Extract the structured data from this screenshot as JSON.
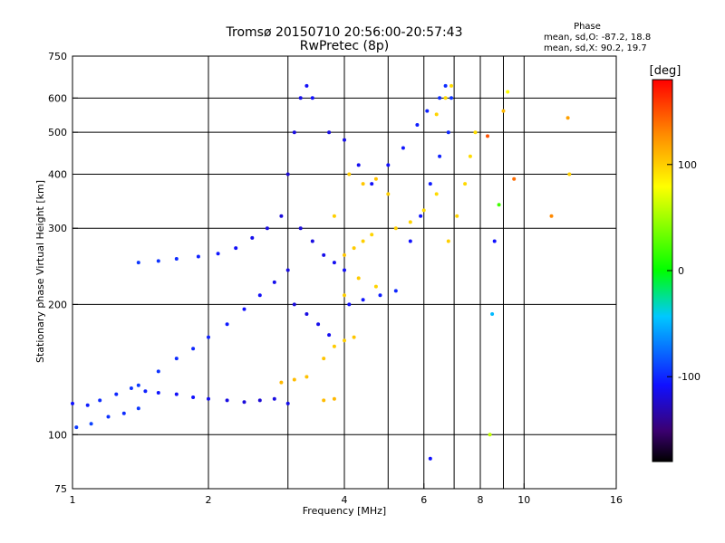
{
  "chart_data": {
    "type": "scatter",
    "title": "Tromsø 20150710 20:56:00-20:57:43",
    "subtitle": "RwPretec (8p)",
    "xlabel": "Frequency [MHz]",
    "ylabel": "Stationary phase Virtual Height [km]",
    "x_scale": "log",
    "y_scale": "log",
    "xlim": [
      1,
      16
    ],
    "ylim": [
      75,
      750
    ],
    "x_ticks": [
      1,
      2,
      4,
      6,
      8,
      10,
      16
    ],
    "x_tick_labels": [
      "1",
      "2",
      "4",
      "6",
      "8",
      "10",
      "16"
    ],
    "y_ticks": [
      75,
      100,
      200,
      300,
      400,
      500,
      600,
      750
    ],
    "y_tick_labels": [
      "75",
      "100",
      "200",
      "300",
      "400",
      "500",
      "600",
      "750"
    ],
    "x_gridlines": [
      2,
      3,
      4,
      5,
      6,
      7,
      8,
      9,
      10
    ],
    "y_gridlines": [
      100,
      200,
      300,
      400,
      500,
      600
    ],
    "grid": true,
    "phase_info": {
      "title": "Phase",
      "line_o": "mean, sd,O: -87.2, 18.8",
      "line_x": "mean, sd,X:  90.2, 19.7"
    },
    "colorbar": {
      "label": "[deg]",
      "range": [
        -180,
        180
      ],
      "ticks": [
        100,
        0,
        -100
      ],
      "tick_labels": [
        "100",
        "0",
        "-100"
      ]
    },
    "series": [
      {
        "description": "O-mode traces",
        "points": [
          [
            1.0,
            118,
            -110
          ],
          [
            1.08,
            117,
            -105
          ],
          [
            1.15,
            120,
            -100
          ],
          [
            1.25,
            124,
            -102
          ],
          [
            1.35,
            128,
            -98
          ],
          [
            1.45,
            126,
            -104
          ],
          [
            1.55,
            125,
            -108
          ],
          [
            1.7,
            124,
            -112
          ],
          [
            1.85,
            122,
            -110
          ],
          [
            2.0,
            121,
            -115
          ],
          [
            2.2,
            120,
            -118
          ],
          [
            2.4,
            119,
            -120
          ],
          [
            2.6,
            120,
            -122
          ],
          [
            2.8,
            121,
            -118
          ],
          [
            3.0,
            118,
            -116
          ],
          [
            1.02,
            104,
            -95
          ],
          [
            1.1,
            106,
            -92
          ],
          [
            1.2,
            110,
            -98
          ],
          [
            1.3,
            112,
            -100
          ],
          [
            1.4,
            115,
            -96
          ],
          [
            1.4,
            130,
            -95
          ],
          [
            1.55,
            140,
            -98
          ],
          [
            1.7,
            150,
            -100
          ],
          [
            1.85,
            158,
            -102
          ],
          [
            2.0,
            168,
            -104
          ],
          [
            2.2,
            180,
            -106
          ],
          [
            2.4,
            195,
            -110
          ],
          [
            2.6,
            210,
            -112
          ],
          [
            2.8,
            225,
            -115
          ],
          [
            3.0,
            240,
            -118
          ],
          [
            1.4,
            250,
            -96
          ],
          [
            1.55,
            252,
            -98
          ],
          [
            1.7,
            255,
            -100
          ],
          [
            1.9,
            258,
            -104
          ],
          [
            2.1,
            262,
            -108
          ],
          [
            2.3,
            270,
            -112
          ],
          [
            2.5,
            285,
            -115
          ],
          [
            2.7,
            300,
            -118
          ],
          [
            2.9,
            320,
            -120
          ],
          [
            3.0,
            400,
            -122
          ],
          [
            3.1,
            500,
            -118
          ],
          [
            3.2,
            600,
            -115
          ],
          [
            3.3,
            640,
            -112
          ],
          [
            3.4,
            600,
            -110
          ],
          [
            3.2,
            300,
            -120
          ],
          [
            3.4,
            280,
            -118
          ],
          [
            3.6,
            260,
            -116
          ],
          [
            3.8,
            250,
            -114
          ],
          [
            4.0,
            240,
            -112
          ],
          [
            3.1,
            200,
            -120
          ],
          [
            3.3,
            190,
            -118
          ],
          [
            3.5,
            180,
            -116
          ],
          [
            3.7,
            170,
            -114
          ],
          [
            4.1,
            200,
            -110
          ],
          [
            4.4,
            205,
            -108
          ],
          [
            4.8,
            210,
            -105
          ],
          [
            5.2,
            215,
            -102
          ],
          [
            3.7,
            500,
            -118
          ],
          [
            4.0,
            480,
            -116
          ],
          [
            4.3,
            420,
            -114
          ],
          [
            4.6,
            380,
            -112
          ],
          [
            5.0,
            420,
            -110
          ],
          [
            5.4,
            460,
            -108
          ],
          [
            5.8,
            520,
            -105
          ],
          [
            6.1,
            560,
            -104
          ],
          [
            5.6,
            280,
            -110
          ],
          [
            5.9,
            320,
            -108
          ],
          [
            6.2,
            380,
            -106
          ],
          [
            6.5,
            440,
            -104
          ],
          [
            6.8,
            500,
            -102
          ],
          [
            6.5,
            600,
            -100
          ],
          [
            6.7,
            640,
            -100
          ],
          [
            6.9,
            600,
            -98
          ]
        ]
      },
      {
        "description": "X-mode traces",
        "points": [
          [
            2.9,
            132,
            110
          ],
          [
            3.1,
            134,
            108
          ],
          [
            3.3,
            136,
            106
          ],
          [
            3.6,
            150,
            105
          ],
          [
            3.8,
            160,
            102
          ],
          [
            4.0,
            165,
            100
          ],
          [
            4.2,
            168,
            104
          ],
          [
            3.6,
            120,
            108
          ],
          [
            3.8,
            121,
            110
          ],
          [
            4.0,
            260,
            104
          ],
          [
            4.2,
            270,
            102
          ],
          [
            4.4,
            280,
            100
          ],
          [
            4.6,
            290,
            98
          ],
          [
            4.1,
            400,
            102
          ],
          [
            4.4,
            380,
            104
          ],
          [
            4.7,
            390,
            106
          ],
          [
            5.0,
            360,
            100
          ],
          [
            5.2,
            300,
            100
          ],
          [
            5.6,
            310,
            98
          ],
          [
            6.0,
            330,
            96
          ],
          [
            6.4,
            360,
            95
          ],
          [
            6.8,
            280,
            100
          ],
          [
            7.1,
            320,
            98
          ],
          [
            7.4,
            380,
            96
          ],
          [
            7.6,
            440,
            95
          ],
          [
            7.8,
            500,
            94
          ],
          [
            6.4,
            550,
            98
          ],
          [
            6.7,
            600,
            96
          ],
          [
            6.9,
            640,
            95
          ],
          [
            3.8,
            320,
            100
          ],
          [
            4.0,
            210,
            100
          ],
          [
            4.3,
            230,
            102
          ],
          [
            4.7,
            220,
            98
          ]
        ]
      },
      {
        "description": "Scattered isolated points",
        "points": [
          [
            8.4,
            100,
            60
          ],
          [
            8.6,
            280,
            -110
          ],
          [
            8.8,
            340,
            20
          ],
          [
            9.0,
            560,
            110
          ],
          [
            9.2,
            620,
            80
          ],
          [
            8.3,
            490,
            150
          ],
          [
            8.5,
            190,
            -50
          ],
          [
            12.5,
            540,
            120
          ],
          [
            12.6,
            400,
            100
          ],
          [
            9.5,
            390,
            140
          ],
          [
            11.5,
            320,
            130
          ],
          [
            6.2,
            88,
            -110
          ]
        ]
      }
    ]
  }
}
